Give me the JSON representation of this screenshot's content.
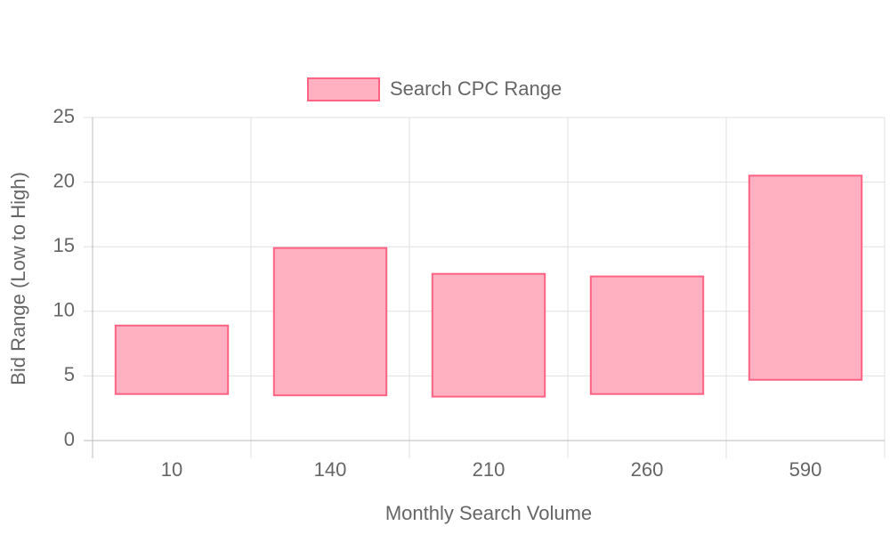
{
  "chart_data": {
    "type": "floating-bar",
    "x_label": "Monthly Search Volume",
    "y_label": "Bid Range (Low to High)",
    "categories": [
      "10",
      "140",
      "210",
      "260",
      "590"
    ],
    "series": [
      {
        "name": "Search CPC Range",
        "color": "#ff6384",
        "fill": "#ffb1c1",
        "low": [
          3.6,
          3.5,
          3.4,
          3.6,
          4.7
        ],
        "high": [
          8.9,
          14.9,
          12.9,
          12.7,
          20.5
        ]
      }
    ],
    "ylim": [
      0,
      25
    ],
    "yticks": [
      0,
      5,
      10,
      15,
      20,
      25
    ],
    "grid": true,
    "legend": "top"
  }
}
